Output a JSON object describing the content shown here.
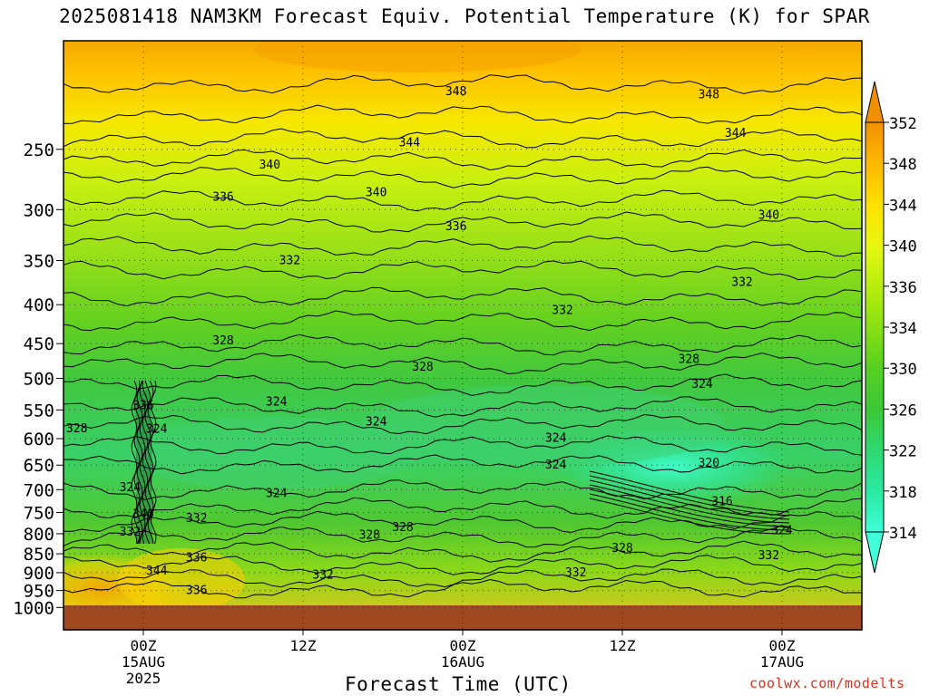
{
  "title": "2025081418 NAM3KM Forecast Equiv. Potential Temperature (K) for SPAR",
  "xlabel": "Forecast Time (UTC)",
  "credit": "coolwx.com/modelts",
  "chart_data": {
    "type": "heatmap",
    "title": "2025081418 NAM3KM Forecast Equiv. Potential Temperature (K) for SPAR",
    "xlabel": "Forecast Time (UTC)",
    "ylabel": "",
    "y_scale": "log",
    "y_axis_inverted": true,
    "ylim": [
      1000,
      200
    ],
    "y_ticks": [
      250,
      300,
      350,
      400,
      450,
      500,
      550,
      600,
      650,
      700,
      750,
      800,
      850,
      900,
      950,
      1000
    ],
    "x_ticks": [
      {
        "hour": 0,
        "lines": [
          "00Z",
          "15AUG",
          "2025"
        ]
      },
      {
        "hour": 12,
        "lines": [
          "12Z"
        ]
      },
      {
        "hour": 24,
        "lines": [
          "00Z",
          "16AUG"
        ]
      },
      {
        "hour": 36,
        "lines": [
          "12Z"
        ]
      },
      {
        "hour": 48,
        "lines": [
          "00Z",
          "17AUG"
        ]
      }
    ],
    "xlim_hours": [
      -6,
      54
    ],
    "grid": "dotted",
    "colorbar": {
      "labels": [
        314,
        318,
        322,
        326,
        330,
        334,
        336,
        340,
        344,
        348,
        352
      ],
      "colors": [
        "#40ffd8",
        "#28eaa0",
        "#30d870",
        "#3ac838",
        "#58d020",
        "#88e010",
        "#b8ee10",
        "#e8f810",
        "#ffe000",
        "#ffb800",
        "#f09000"
      ]
    },
    "contour_labels": [
      {
        "text": "348",
        "hour": 23.5,
        "p": 210
      },
      {
        "text": "348",
        "hour": 42.5,
        "p": 212
      },
      {
        "text": "344",
        "hour": 20.0,
        "p": 245
      },
      {
        "text": "344",
        "hour": 44.5,
        "p": 238
      },
      {
        "text": "340",
        "hour": 9.5,
        "p": 262
      },
      {
        "text": "340",
        "hour": 17.5,
        "p": 285
      },
      {
        "text": "340",
        "hour": 47.0,
        "p": 305
      },
      {
        "text": "336",
        "hour": 6.0,
        "p": 289
      },
      {
        "text": "336",
        "hour": 23.5,
        "p": 316
      },
      {
        "text": "332",
        "hour": 11.0,
        "p": 350
      },
      {
        "text": "332",
        "hour": 45.0,
        "p": 374
      },
      {
        "text": "332",
        "hour": 31.5,
        "p": 407
      },
      {
        "text": "328",
        "hour": 6.0,
        "p": 446
      },
      {
        "text": "328",
        "hour": 21.0,
        "p": 483
      },
      {
        "text": "328",
        "hour": 41.0,
        "p": 472
      },
      {
        "text": "324",
        "hour": 42.0,
        "p": 509
      },
      {
        "text": "324",
        "hour": 10.0,
        "p": 537
      },
      {
        "text": "324",
        "hour": 17.5,
        "p": 570
      },
      {
        "text": "324",
        "hour": 31.0,
        "p": 599
      },
      {
        "text": "324",
        "hour": 31.0,
        "p": 650
      },
      {
        "text": "324",
        "hour": 10.0,
        "p": 708
      },
      {
        "text": "328",
        "hour": -5.0,
        "p": 582
      },
      {
        "text": "336",
        "hour": 0.0,
        "p": 543
      },
      {
        "text": "324",
        "hour": 1.0,
        "p": 583
      },
      {
        "text": "324",
        "hour": -1.0,
        "p": 696
      },
      {
        "text": "340",
        "hour": 0.0,
        "p": 754
      },
      {
        "text": "332",
        "hour": 4.0,
        "p": 764
      },
      {
        "text": "332",
        "hour": -1.0,
        "p": 796
      },
      {
        "text": "320",
        "hour": 42.5,
        "p": 646
      },
      {
        "text": "316",
        "hour": 43.5,
        "p": 726
      },
      {
        "text": "328",
        "hour": 19.5,
        "p": 785
      },
      {
        "text": "328",
        "hour": 17.0,
        "p": 803
      },
      {
        "text": "328",
        "hour": 36.0,
        "p": 836
      },
      {
        "text": "324",
        "hour": 48.0,
        "p": 792
      },
      {
        "text": "336",
        "hour": 4.0,
        "p": 860
      },
      {
        "text": "344",
        "hour": 1.0,
        "p": 895
      },
      {
        "text": "332",
        "hour": 13.5,
        "p": 907
      },
      {
        "text": "332",
        "hour": 32.5,
        "p": 900
      },
      {
        "text": "332",
        "hour": 47.0,
        "p": 855
      },
      {
        "text": "336",
        "hour": 4.0,
        "p": 950
      }
    ]
  }
}
